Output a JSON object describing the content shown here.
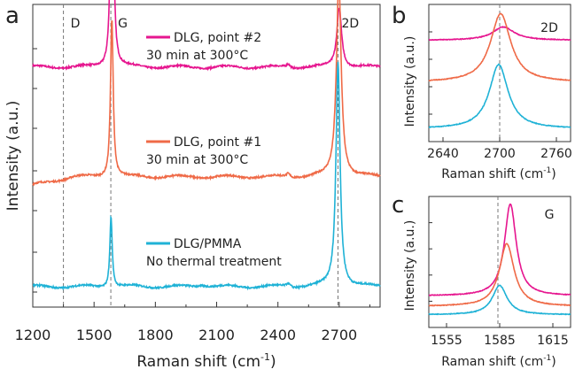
{
  "colors": {
    "magenta": "#e6168f",
    "orange": "#ef6a47",
    "cyan": "#1fb2d6"
  },
  "chart_data": [
    {
      "panel": "a",
      "type": "line",
      "xlabel": "Raman shift (cm",
      "xlabel_sup": "-1",
      "xlabel_close": ")",
      "ylabel": "Intensity (a.u.)",
      "xlim": [
        1200,
        2900
      ],
      "xticks": [
        1200,
        1500,
        1800,
        2100,
        2400,
        2700
      ],
      "ref_lines": [
        {
          "label": "D",
          "x": 1350
        },
        {
          "label": "G",
          "x": 1582
        },
        {
          "label": "2D",
          "x": 2694
        }
      ],
      "series": [
        {
          "name": "DLG, point #2",
          "note": "30 min at 300°C",
          "color": "#e6168f",
          "baseline": 0.82,
          "peaks": [
            {
              "x": 1588,
              "h": 0.98,
              "w": 8
            },
            {
              "x": 2700,
              "h": 0.22,
              "w": 14
            }
          ]
        },
        {
          "name": "DLG, point #1",
          "note": "30 min at 300°C",
          "color": "#ef6a47",
          "baseline": 0.42,
          "peaks": [
            {
              "x": 1587,
              "h": 0.58,
              "w": 8
            },
            {
              "x": 2698,
              "h": 0.72,
              "w": 14
            }
          ]
        },
        {
          "name": "DLG/PMMA",
          "note": "No thermal treatment",
          "color": "#1fb2d6",
          "baseline": 0.02,
          "peaks": [
            {
              "x": 1583,
              "h": 0.26,
              "w": 7
            },
            {
              "x": 2694,
              "h": 0.82,
              "w": 12
            }
          ]
        }
      ]
    },
    {
      "panel": "b",
      "type": "line",
      "label": "2D",
      "xlabel": "Raman shift (cm",
      "xlabel_sup": "-1",
      "xlabel_close": ")",
      "ylabel": "Intensity (a.u.)",
      "xlim": [
        2625,
        2775
      ],
      "xticks": [
        2640,
        2700,
        2760
      ],
      "ref_line_x": 2700,
      "series": [
        {
          "color": "#e6168f",
          "peak": 2704,
          "h": 0.12,
          "base": 0.82,
          "w": 14
        },
        {
          "color": "#ef6a47",
          "peak": 2701,
          "h": 0.62,
          "base": 0.44,
          "w": 13
        },
        {
          "color": "#1fb2d6",
          "peak": 2699,
          "h": 0.58,
          "base": 0.02,
          "w": 12
        }
      ]
    },
    {
      "panel": "c",
      "type": "line",
      "label": "G",
      "xlabel": "Raman shift (cm",
      "xlabel_sup": "-1",
      "xlabel_close": ")",
      "ylabel": "Intensity (a.u.)",
      "xlim": [
        1545,
        1625
      ],
      "xticks": [
        1555,
        1585,
        1615
      ],
      "ref_line_x": 1584,
      "series": [
        {
          "color": "#e6168f",
          "peak": 1591,
          "h": 0.88,
          "base": 0.2,
          "w": 4
        },
        {
          "color": "#ef6a47",
          "peak": 1589,
          "h": 0.6,
          "base": 0.1,
          "w": 5
        },
        {
          "color": "#1fb2d6",
          "peak": 1585,
          "h": 0.28,
          "base": 0.02,
          "w": 5
        }
      ]
    }
  ],
  "panel_letters": [
    "a",
    "b",
    "c"
  ]
}
